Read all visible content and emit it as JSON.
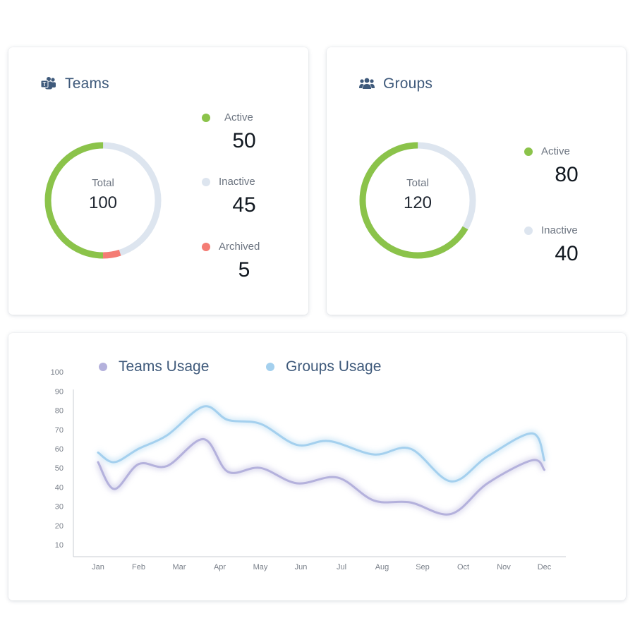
{
  "teams_card": {
    "title": "Teams",
    "icon": "teams-icon",
    "total_label": "Total",
    "total_value": "100",
    "legend": [
      {
        "label": "Active",
        "value": "50",
        "color": "#8bc34a"
      },
      {
        "label": "Inactive",
        "value": "45",
        "color": "#dde5ef"
      },
      {
        "label": "Archived",
        "value": "5",
        "color": "#f47c74"
      }
    ]
  },
  "groups_card": {
    "title": "Groups",
    "icon": "users-icon",
    "total_label": "Total",
    "total_value": "120",
    "legend": [
      {
        "label": "Active",
        "value": "80",
        "color": "#8bc34a"
      },
      {
        "label": "Inactive",
        "value": "40",
        "color": "#dde5ef"
      }
    ]
  },
  "usage_card": {
    "legend": [
      {
        "label": "Teams Usage",
        "color": "#b4b1dc"
      },
      {
        "label": "Groups Usage",
        "color": "#a4d0ee"
      }
    ]
  },
  "chart_data": {
    "type": "line",
    "categories": [
      "Jan",
      "Feb",
      "Mar",
      "Apr",
      "May",
      "Jun",
      "Jul",
      "Aug",
      "Sep",
      "Oct",
      "Nov",
      "Dec"
    ],
    "yticks": [
      10,
      20,
      30,
      40,
      50,
      60,
      70,
      80,
      90,
      100
    ],
    "ylim": [
      0,
      100
    ],
    "grid": false,
    "legend_position": "top",
    "series": [
      {
        "name": "Teams Usage",
        "color": "#b4b1dc",
        "x": [
          0,
          0.4,
          1,
          1.7,
          2.6,
          3.2,
          4,
          4.9,
          5.9,
          6.8,
          7.7,
          8.7,
          9.6,
          10.7,
          11
        ],
        "values": [
          53,
          39,
          52,
          51,
          65,
          48,
          50,
          42,
          45,
          33,
          32,
          26,
          42,
          54,
          49
        ]
      },
      {
        "name": "Groups Usage",
        "color": "#a4d0ee",
        "x": [
          0,
          0.4,
          1,
          1.7,
          2.6,
          3.2,
          4,
          4.9,
          5.7,
          6.8,
          7.7,
          8.7,
          9.6,
          10.7,
          11
        ],
        "values": [
          58,
          53,
          60,
          67,
          82,
          75,
          73,
          62,
          64,
          57,
          60,
          43,
          56,
          68,
          54
        ]
      }
    ]
  }
}
